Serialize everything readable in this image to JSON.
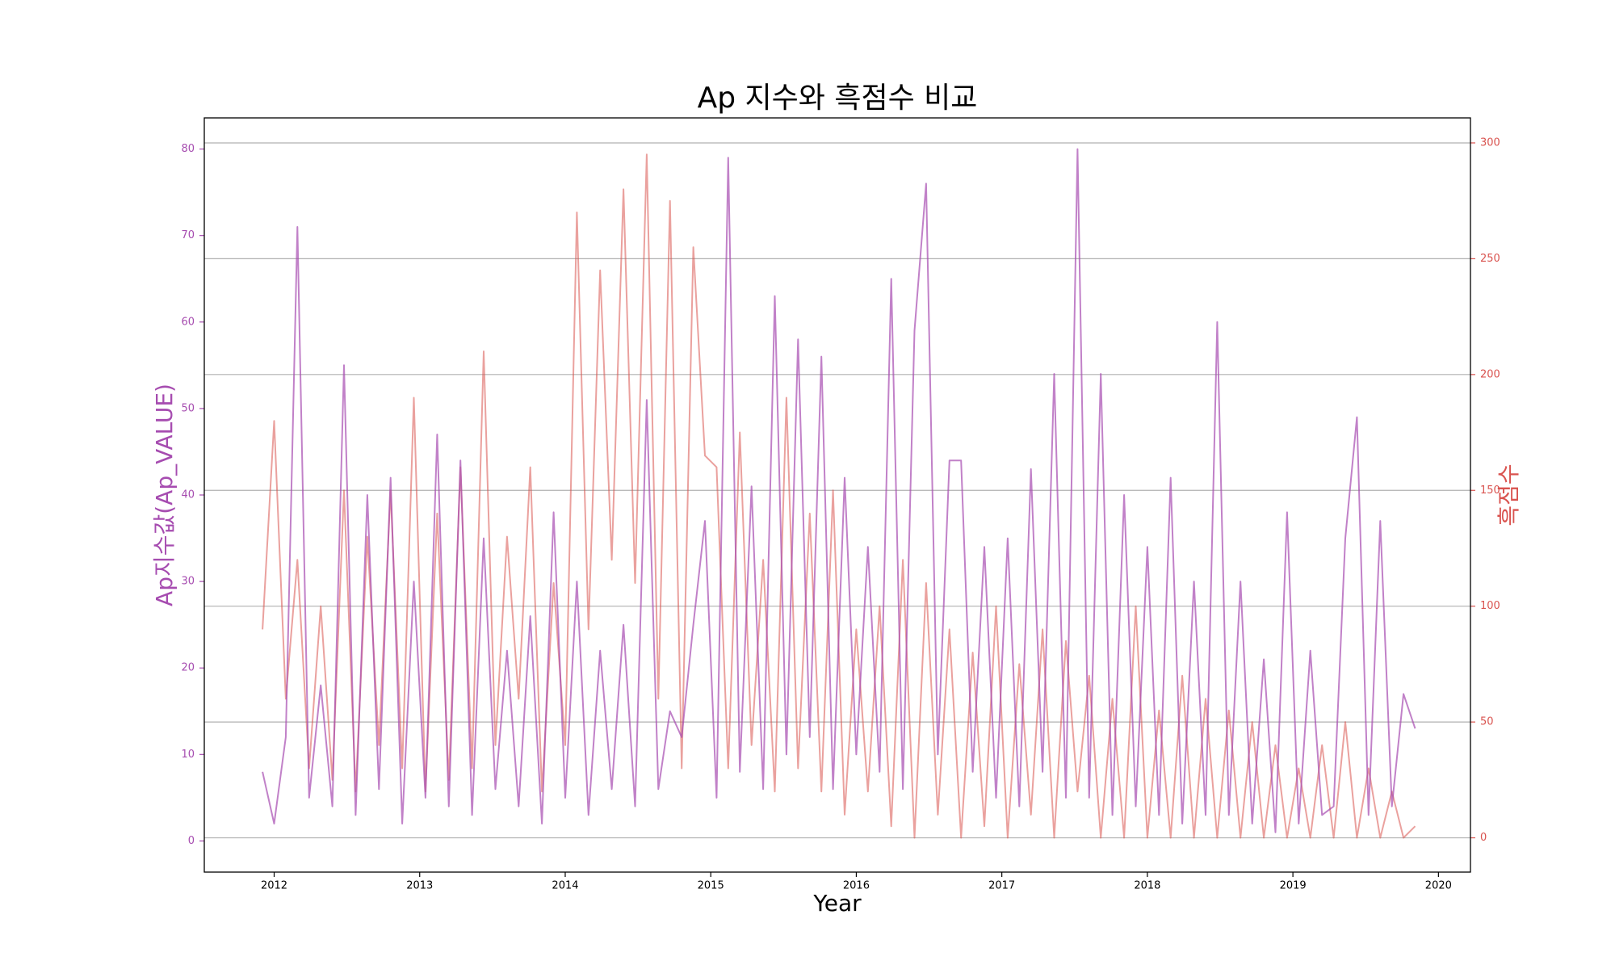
{
  "chart_data": {
    "type": "line",
    "title": "Ap 지수와 흑점수 비교",
    "xlabel": "Year",
    "ylabel": "Ap지수값(Ap_VALUE)",
    "y2label": "흑점수",
    "x": [
      2011.92,
      2012.0,
      2012.08,
      2012.16,
      2012.24,
      2012.32,
      2012.4,
      2012.48,
      2012.56,
      2012.64,
      2012.72,
      2012.8,
      2012.88,
      2012.96,
      2013.04,
      2013.12,
      2013.2,
      2013.28,
      2013.36,
      2013.44,
      2013.52,
      2013.6,
      2013.68,
      2013.76,
      2013.84,
      2013.92,
      2014.0,
      2014.08,
      2014.16,
      2014.24,
      2014.32,
      2014.4,
      2014.48,
      2014.56,
      2014.64,
      2014.72,
      2014.8,
      2014.88,
      2014.96,
      2015.04,
      2015.12,
      2015.2,
      2015.28,
      2015.36,
      2015.44,
      2015.52,
      2015.6,
      2015.68,
      2015.76,
      2015.84,
      2015.92,
      2016.0,
      2016.08,
      2016.16,
      2016.24,
      2016.32,
      2016.4,
      2016.48,
      2016.56,
      2016.64,
      2016.72,
      2016.8,
      2016.88,
      2016.96,
      2017.04,
      2017.12,
      2017.2,
      2017.28,
      2017.36,
      2017.44,
      2017.52,
      2017.6,
      2017.68,
      2017.76,
      2017.84,
      2017.92,
      2018.0,
      2018.08,
      2018.16,
      2018.24,
      2018.32,
      2018.4,
      2018.48,
      2018.56,
      2018.64,
      2018.72,
      2018.8,
      2018.88,
      2018.96,
      2019.04,
      2019.12,
      2019.2,
      2019.28,
      2019.36,
      2019.44,
      2019.52,
      2019.6,
      2019.68,
      2019.76,
      2019.84
    ],
    "series": [
      {
        "name": "Ap",
        "color": "#a64cb0",
        "values": [
          8,
          2,
          12,
          71,
          5,
          18,
          4,
          55,
          3,
          40,
          6,
          42,
          2,
          30,
          5,
          47,
          4,
          44,
          3,
          35,
          6,
          22,
          4,
          26,
          2,
          38,
          5,
          30,
          3,
          22,
          6,
          25,
          4,
          51,
          6,
          15,
          12,
          25,
          37,
          5,
          79,
          8,
          41,
          6,
          63,
          10,
          58,
          12,
          56,
          6,
          42,
          10,
          34,
          8,
          65,
          6,
          59,
          76,
          10,
          44,
          44,
          8,
          34,
          5,
          35,
          4,
          43,
          8,
          54,
          5,
          80,
          5,
          54,
          3,
          40,
          4,
          34,
          3,
          42,
          2,
          30,
          3,
          60,
          3,
          30,
          2,
          21,
          1,
          38,
          2,
          22,
          3,
          4,
          35,
          49,
          3,
          37,
          4,
          17,
          13
        ]
      },
      {
        "name": "흑점수",
        "color": "#d9534f",
        "axis": "y2",
        "values": [
          90,
          180,
          60,
          120,
          30,
          100,
          25,
          150,
          20,
          130,
          40,
          150,
          30,
          190,
          20,
          140,
          25,
          160,
          30,
          210,
          40,
          130,
          60,
          160,
          20,
          110,
          40,
          270,
          90,
          245,
          120,
          280,
          110,
          295,
          60,
          275,
          30,
          255,
          165,
          160,
          30,
          175,
          40,
          120,
          20,
          190,
          30,
          140,
          20,
          150,
          10,
          90,
          20,
          100,
          5,
          120,
          0,
          110,
          10,
          90,
          0,
          80,
          5,
          100,
          0,
          75,
          10,
          90,
          0,
          85,
          20,
          70,
          0,
          60,
          0,
          100,
          0,
          55,
          0,
          70,
          0,
          60,
          0,
          55,
          0,
          50,
          0,
          40,
          0,
          30,
          0,
          40,
          0,
          50,
          0,
          30,
          0,
          20,
          0,
          5
        ]
      }
    ],
    "xlim": [
      2011.52,
      2020.22
    ],
    "xticks": [
      2012,
      2013,
      2014,
      2015,
      2016,
      2017,
      2018,
      2019,
      2020
    ],
    "ylim": [
      -3.6,
      83.6
    ],
    "yticks": [
      0,
      10,
      20,
      30,
      40,
      50,
      60,
      70,
      80
    ],
    "y2lim": [
      -14.8,
      310.8
    ],
    "y2ticks": [
      0,
      50,
      100,
      150,
      200,
      250,
      300
    ],
    "grid": true
  }
}
